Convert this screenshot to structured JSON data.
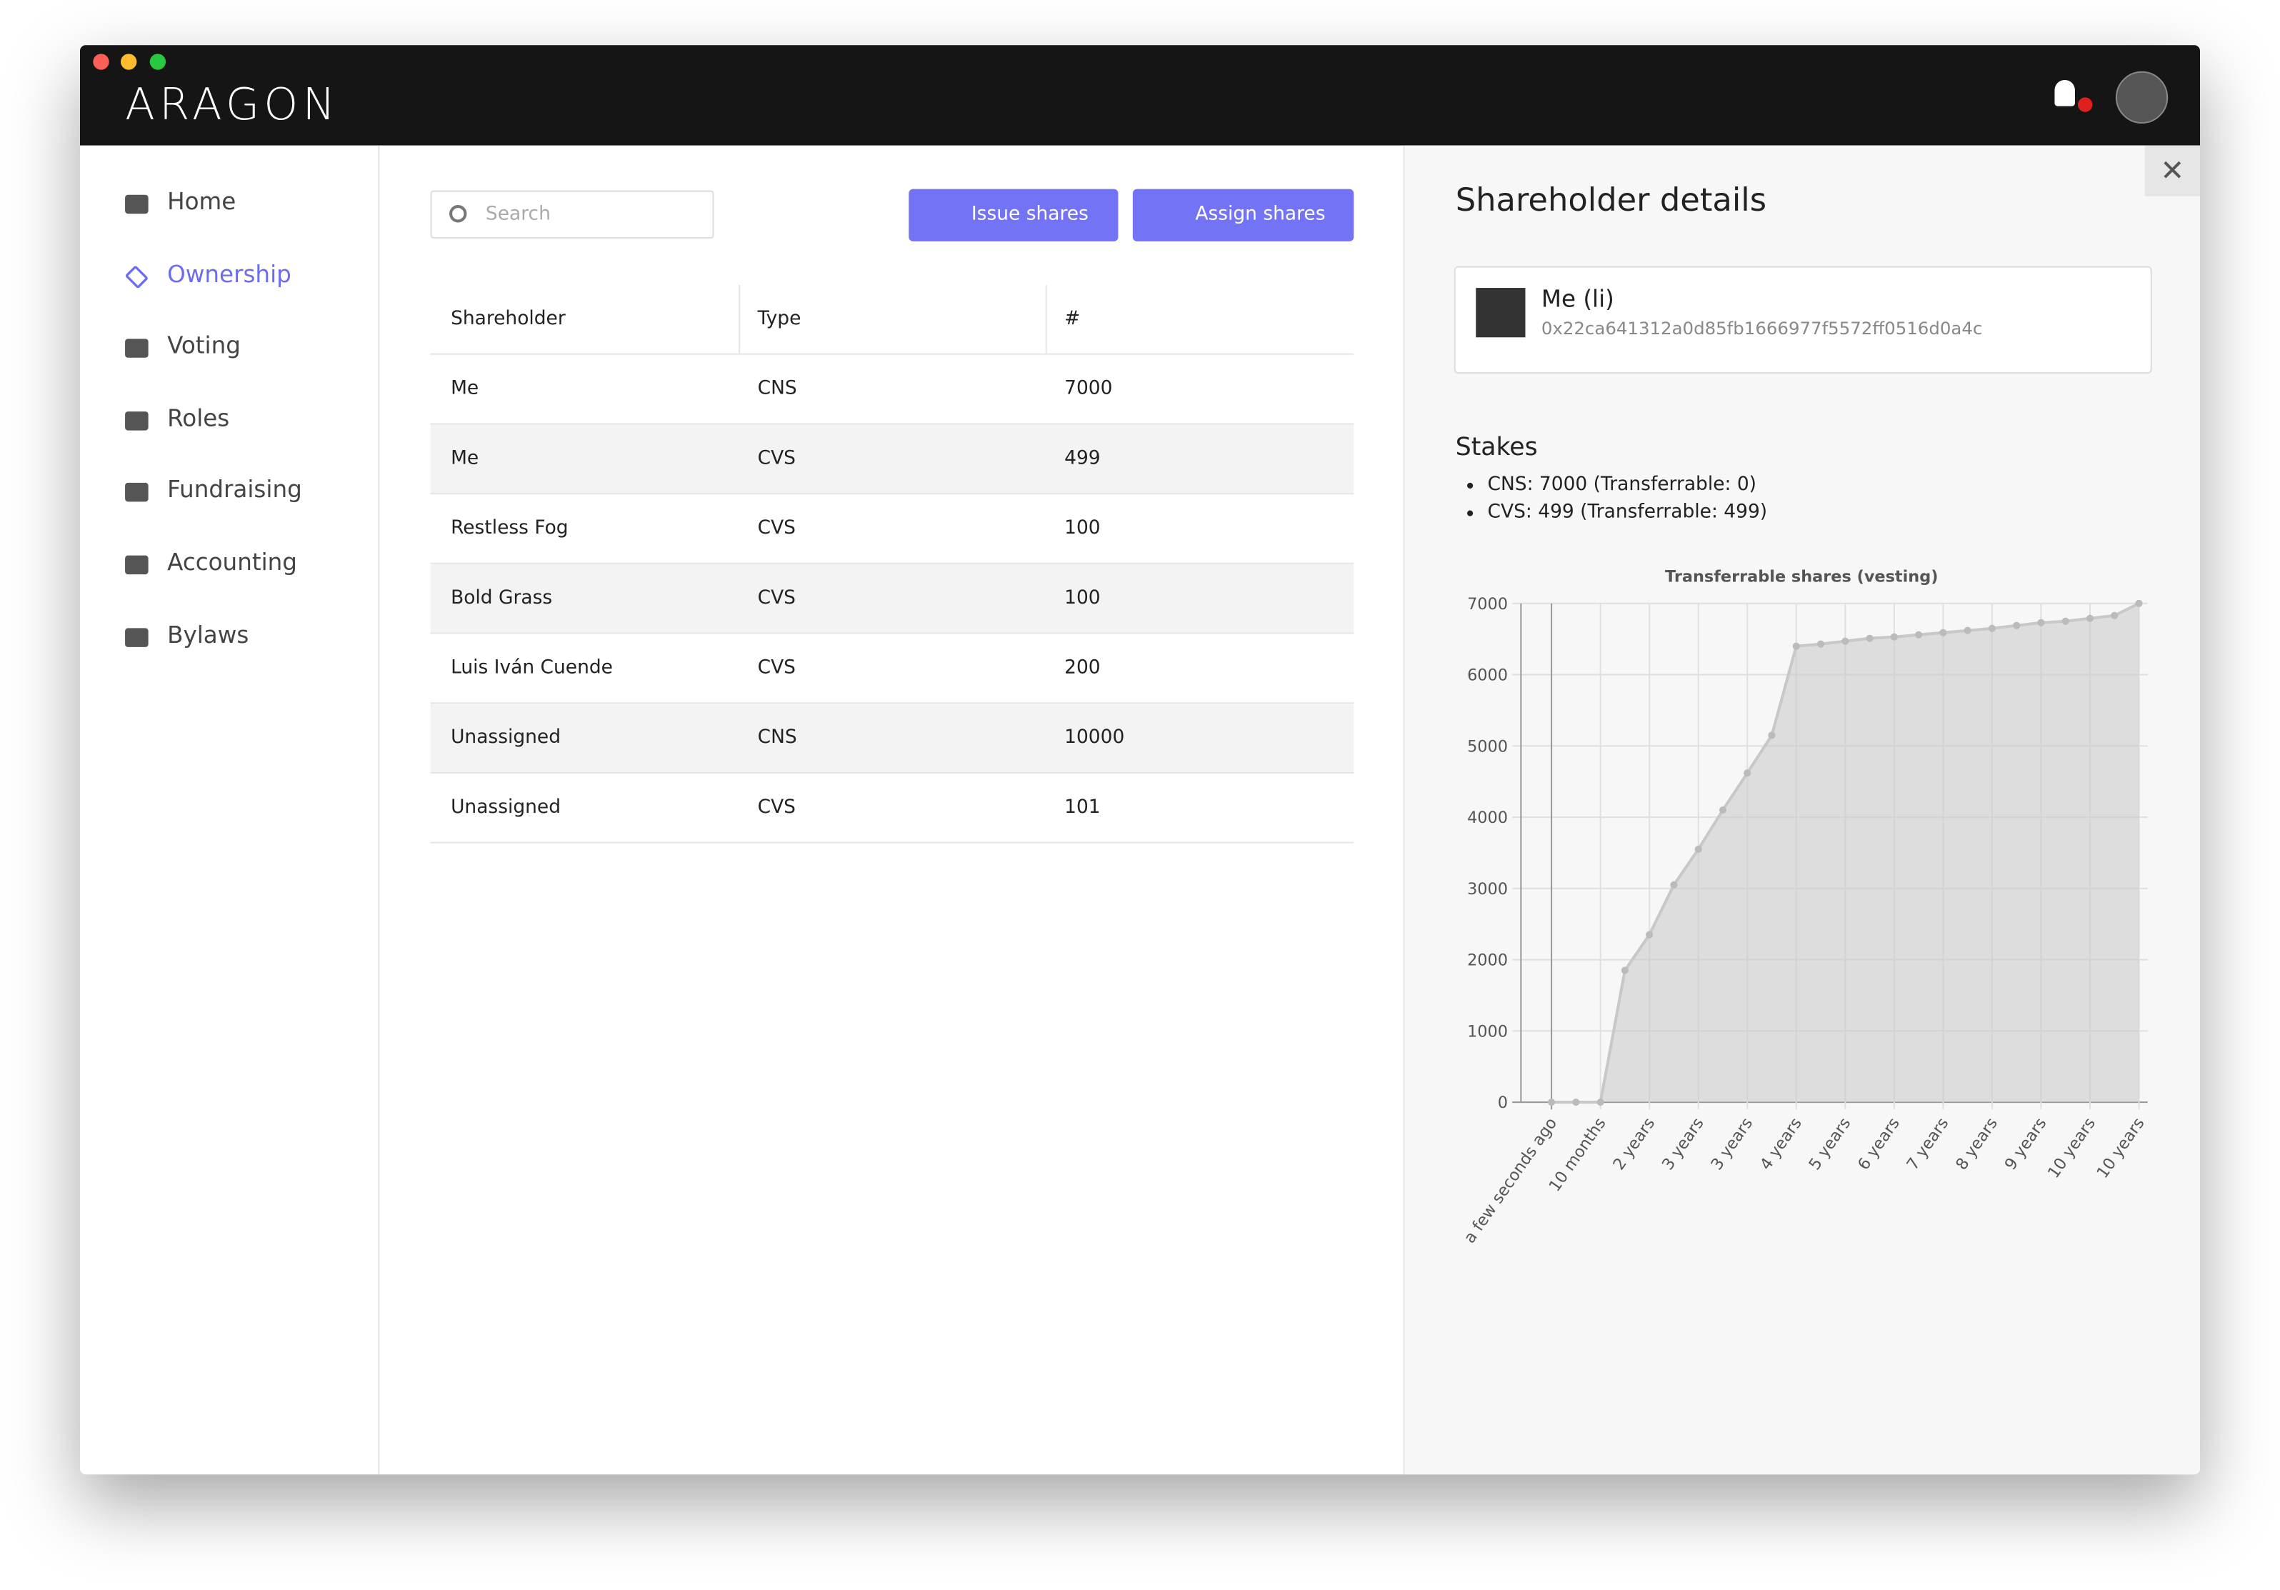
{
  "header": {
    "logo": "ARAGON"
  },
  "nav": [
    "Home",
    "Ownership",
    "Voting",
    "Roles",
    "Fundraising",
    "Accounting",
    "Bylaws"
  ],
  "search": {
    "placeholder": "Search"
  },
  "buttons": [
    "Issue shares",
    "Assign shares"
  ],
  "table": {
    "columns": [
      "Shareholder",
      "Type",
      "#"
    ],
    "rows": [
      [
        "Me",
        "CNS",
        7000
      ],
      [
        "Me",
        "CVS",
        499
      ],
      [
        "Restless Fog",
        "CVS",
        100
      ],
      [
        "Bold Grass",
        "CVS",
        100
      ],
      [
        "Luis Iván Cuende",
        "CVS",
        200
      ],
      [
        "Unassigned",
        "CNS",
        10000
      ],
      [
        "Unassigned",
        "CVS",
        101
      ]
    ]
  },
  "details": {
    "title": "Shareholder details",
    "name": "Me (li)",
    "address": "0x22ca641312a0d85fb1666977f5572ff0516d0a4c",
    "stakes_title": "Stakes",
    "stakes": [
      "CNS: 7000 (Transferrable: 0)",
      "CVS: 499 (Transferrable: 499)"
    ]
  },
  "chart_data": {
    "type": "area",
    "title": "Transferrable shares (vesting)",
    "categories": [
      "a few seconds ago",
      null,
      "10 months",
      null,
      "2 years",
      null,
      "3 years",
      null,
      "3 years",
      null,
      "4 years",
      null,
      "5 years",
      null,
      "6 years",
      null,
      "7 years",
      null,
      "8 years",
      null,
      "9 years",
      null,
      "10 years",
      null,
      "10 years"
    ],
    "values": [
      0,
      0,
      0,
      1850,
      2350,
      3050,
      3550,
      4100,
      4620,
      5150,
      6400,
      6430,
      6470,
      6510,
      6530,
      6560,
      6590,
      6620,
      6650,
      6690,
      6730,
      6750,
      6790,
      6830,
      7000
    ],
    "ylim": [
      0,
      7000
    ],
    "yticks": [
      0,
      1000,
      2000,
      3000,
      4000,
      5000,
      6000,
      7000
    ],
    "grid": true,
    "color": "#c8c8c8"
  }
}
